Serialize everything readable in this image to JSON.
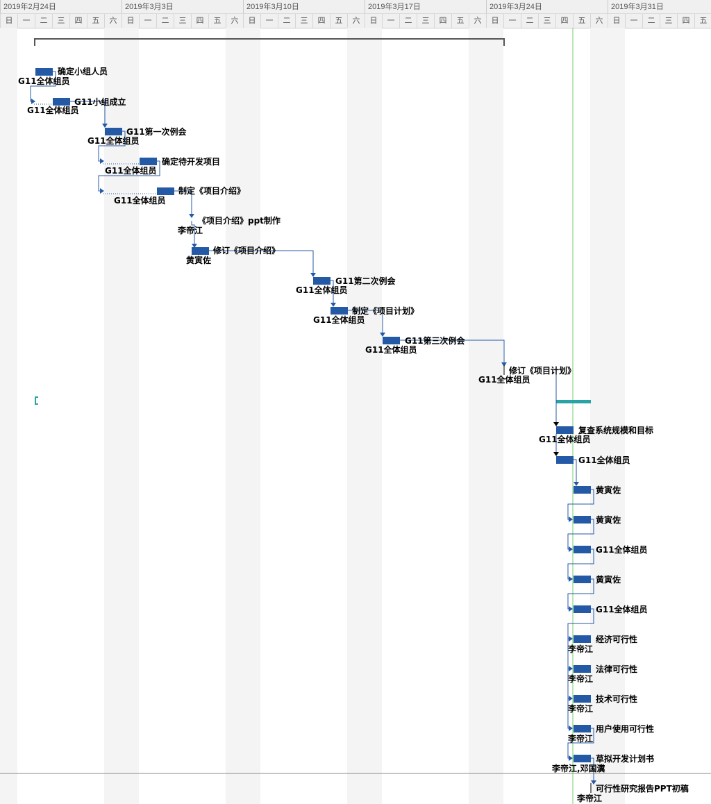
{
  "timeline": {
    "weeks": [
      "2019年2月24日",
      "2019年3月3日",
      "2019年3月10日",
      "2019年3月17日",
      "2019年3月24日",
      "2019年3月31日"
    ],
    "weekdays": [
      "日",
      "一",
      "二",
      "三",
      "四",
      "五",
      "六"
    ]
  },
  "tasks": [
    {
      "name": "确定小组人员",
      "resource": "G11全体组员"
    },
    {
      "name": "G11小组成立",
      "resource": "G11全体组员"
    },
    {
      "name": "G11第一次例会",
      "resource": "G11全体组员"
    },
    {
      "name": "确定待开发项目",
      "resource": "G11全体组员"
    },
    {
      "name": "制定《项目介绍》",
      "resource": "G11全体组员"
    },
    {
      "name": "《项目介绍》ppt制作",
      "resource": "李帝江"
    },
    {
      "name": "修订《项目介绍》",
      "resource": "黄寅佐"
    },
    {
      "name": "G11第二次例会",
      "resource": "G11全体组员"
    },
    {
      "name": "制定《项目计划》",
      "resource": "G11全体组员"
    },
    {
      "name": "G11第三次例会",
      "resource": "G11全体组员"
    },
    {
      "name": "修订《项目计划》",
      "resource": "G11全体组员"
    },
    {
      "name": "复查系统规模和目标",
      "resource": "G11全体组员"
    },
    {
      "name": "",
      "resource": "G11全体组员"
    },
    {
      "name": "",
      "resource": "黄寅佐"
    },
    {
      "name": "",
      "resource": "黄寅佐"
    },
    {
      "name": "",
      "resource": "G11全体组员"
    },
    {
      "name": "",
      "resource": "黄寅佐"
    },
    {
      "name": "",
      "resource": "G11全体组员"
    },
    {
      "name": "经济可行性",
      "resource": "李帝江"
    },
    {
      "name": "法律可行性",
      "resource": "李帝江"
    },
    {
      "name": "技术可行性",
      "resource": "李帝江"
    },
    {
      "name": "用户使用可行性",
      "resource": "李帝江"
    },
    {
      "name": "草拟开发计划书",
      "resource": "李帝江,邓国瀵"
    },
    {
      "name": "可行性研究报告PPT初稿",
      "resource": "李帝江"
    }
  ],
  "colors": {
    "task_bar": "#2459a6",
    "summary_bar": "#555555",
    "teal_summary": "#2aa3a6",
    "today_line": "#6fcf6f",
    "link": "#2459a6"
  }
}
